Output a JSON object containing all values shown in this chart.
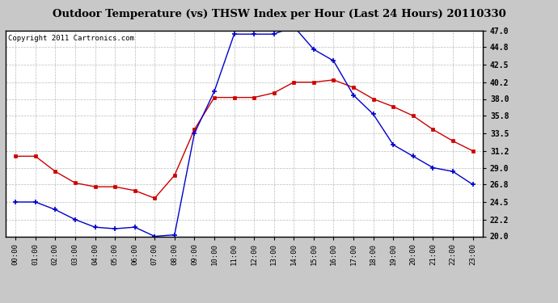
{
  "title": "Outdoor Temperature (vs) THSW Index per Hour (Last 24 Hours) 20110330",
  "copyright": "Copyright 2011 Cartronics.com",
  "hours": [
    "00:00",
    "01:00",
    "02:00",
    "03:00",
    "04:00",
    "05:00",
    "06:00",
    "07:00",
    "08:00",
    "09:00",
    "10:00",
    "11:00",
    "12:00",
    "13:00",
    "14:00",
    "15:00",
    "16:00",
    "17:00",
    "18:00",
    "19:00",
    "20:00",
    "21:00",
    "22:00",
    "23:00"
  ],
  "temp_red": [
    30.5,
    30.5,
    28.5,
    27.0,
    26.5,
    26.5,
    26.0,
    25.0,
    28.0,
    34.0,
    38.2,
    38.2,
    38.2,
    38.8,
    40.2,
    40.2,
    40.5,
    39.5,
    38.0,
    37.0,
    35.8,
    34.0,
    32.5,
    31.2
  ],
  "thsw_blue": [
    24.5,
    24.5,
    23.5,
    22.2,
    21.2,
    21.0,
    21.2,
    20.0,
    20.2,
    33.5,
    39.0,
    46.5,
    46.5,
    46.5,
    47.5,
    44.5,
    43.0,
    38.5,
    36.0,
    32.0,
    30.5,
    29.0,
    28.5,
    26.8
  ],
  "ylim_min": 20.0,
  "ylim_max": 47.0,
  "yticks": [
    20.0,
    22.2,
    24.5,
    26.8,
    29.0,
    31.2,
    33.5,
    35.8,
    38.0,
    40.2,
    42.5,
    44.8,
    47.0
  ],
  "bg_color": "#c8c8c8",
  "plot_bg_color": "#ffffff",
  "red_color": "#cc0000",
  "blue_color": "#0000cc",
  "grid_color": "#aaaaaa",
  "title_fontsize": 9.5,
  "copyright_fontsize": 6.5
}
